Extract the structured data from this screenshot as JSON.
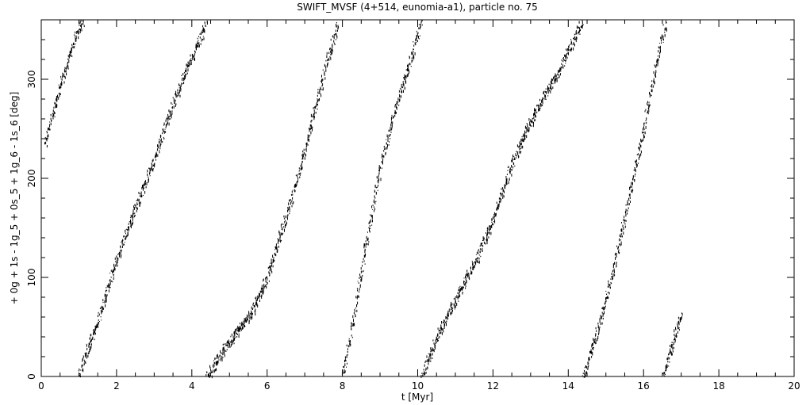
{
  "chart_data": {
    "type": "scatter",
    "title": "SWIFT_MVSF (4+514, eunomia-a1), particle no. 75",
    "xlabel": "t [Myr]",
    "ylabel": "+ 0g + 1s - 1g_5 + 0s_5 + 1g_6 - 1s_6 [deg]",
    "xlim": [
      0,
      20
    ],
    "ylim": [
      0,
      360
    ],
    "x_ticks": [
      0,
      2,
      4,
      6,
      8,
      10,
      12,
      14,
      16,
      18,
      20
    ],
    "y_ticks": [
      0,
      100,
      200,
      300
    ],
    "grid": false,
    "marker_color": "#000000",
    "series": [
      {
        "x": [
          0.1,
          0.3,
          0.5,
          0.7,
          0.9,
          1.1
        ],
        "y": [
          235,
          265,
          292,
          318,
          342,
          360
        ]
      },
      {
        "x": [
          1.0,
          1.2,
          1.5,
          1.8,
          2.2,
          2.6,
          3.0,
          3.4,
          3.8,
          4.2,
          4.4
        ],
        "y": [
          0,
          25,
          55,
          95,
          140,
          180,
          220,
          265,
          305,
          340,
          360
        ]
      },
      {
        "x": [
          4.4,
          4.8,
          5.2,
          5.6,
          6.0,
          6.4,
          6.8,
          7.2,
          7.6,
          7.9
        ],
        "y": [
          0,
          25,
          45,
          65,
          100,
          150,
          200,
          260,
          320,
          360
        ]
      },
      {
        "x": [
          8.0,
          8.3,
          8.6,
          9.0,
          9.4,
          9.8,
          10.1
        ],
        "y": [
          0,
          60,
          130,
          210,
          270,
          320,
          360
        ]
      },
      {
        "x": [
          10.1,
          10.5,
          10.9,
          11.3,
          11.7,
          12.1,
          12.5,
          12.9,
          13.3,
          13.7,
          14.0,
          14.4
        ],
        "y": [
          0,
          40,
          70,
          100,
          130,
          170,
          215,
          250,
          280,
          305,
          330,
          360
        ]
      },
      {
        "x": [
          14.4,
          14.8,
          15.2,
          15.6,
          16.0,
          16.3,
          16.6
        ],
        "y": [
          0,
          50,
          110,
          180,
          250,
          310,
          360
        ]
      },
      {
        "x": [
          16.5,
          16.7,
          16.9,
          17.0
        ],
        "y": [
          0,
          25,
          50,
          65
        ]
      }
    ]
  }
}
